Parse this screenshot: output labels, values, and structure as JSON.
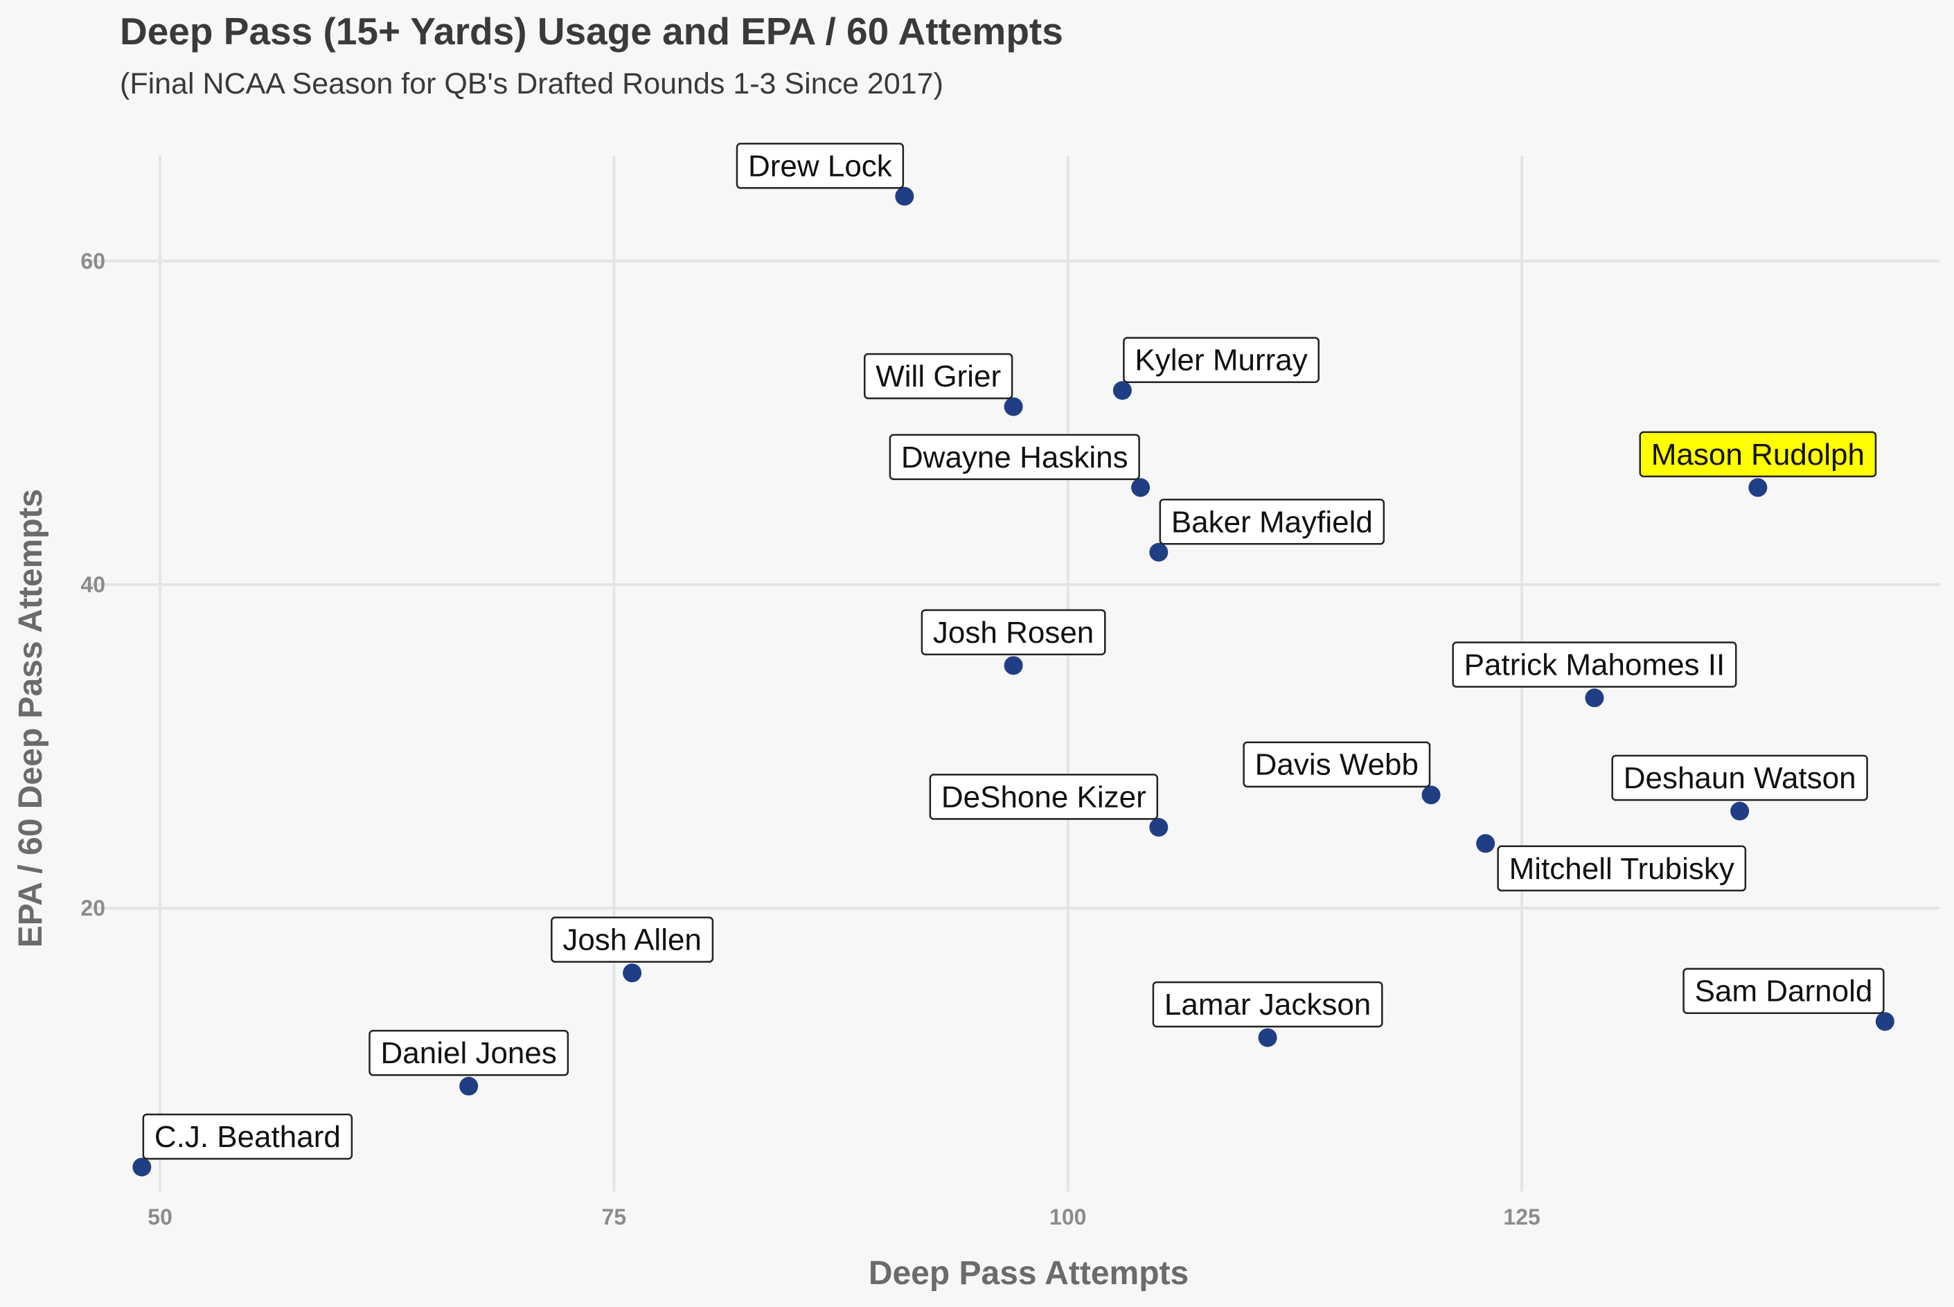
{
  "chart_data": {
    "type": "scatter",
    "title": "Deep Pass (15+ Yards) Usage and EPA / 60 Attempts",
    "subtitle": "(Final NCAA Season for QB's Drafted Rounds 1-3 Since 2017)",
    "xlabel": "Deep Pass Attempts",
    "ylabel": "EPA / 60 Deep Pass Attempts",
    "xlim": [
      45,
      148
    ],
    "ylim": [
      2.5,
      66.5
    ],
    "x_ticks": [
      50,
      75,
      100,
      125
    ],
    "y_ticks": [
      20,
      40,
      60
    ],
    "x_tick_labels": [
      "50",
      "75",
      "100",
      "125"
    ],
    "y_tick_labels": [
      "20",
      "40",
      "60"
    ],
    "grid": true,
    "point_color": "#1f3e84",
    "label_fill": "#ffffff",
    "highlight_fill": "#ffff00",
    "points": [
      {
        "name": "Drew Lock",
        "x": 91,
        "y": 64,
        "highlight": false,
        "label_pos": "upper-left"
      },
      {
        "name": "Kyler Murray",
        "x": 103,
        "y": 52,
        "highlight": false,
        "label_pos": "upper-right"
      },
      {
        "name": "Will Grier",
        "x": 97,
        "y": 51,
        "highlight": false,
        "label_pos": "upper-left"
      },
      {
        "name": "Dwayne Haskins",
        "x": 104,
        "y": 46,
        "highlight": false,
        "label_pos": "upper-left"
      },
      {
        "name": "Mason Rudolph",
        "x": 138,
        "y": 46,
        "highlight": true,
        "label_pos": "upper-center"
      },
      {
        "name": "Baker Mayfield",
        "x": 105,
        "y": 42,
        "highlight": false,
        "label_pos": "upper-right"
      },
      {
        "name": "Josh Rosen",
        "x": 97,
        "y": 35,
        "highlight": false,
        "label_pos": "upper-center"
      },
      {
        "name": "Patrick Mahomes II",
        "x": 129,
        "y": 33,
        "highlight": false,
        "label_pos": "upper-center"
      },
      {
        "name": "Davis Webb",
        "x": 120,
        "y": 27,
        "highlight": false,
        "label_pos": "upper-left"
      },
      {
        "name": "Deshaun Watson",
        "x": 137,
        "y": 26,
        "highlight": false,
        "label_pos": "upper-center"
      },
      {
        "name": "DeShone Kizer",
        "x": 105,
        "y": 25,
        "highlight": false,
        "label_pos": "upper-left"
      },
      {
        "name": "Mitchell Trubisky",
        "x": 123,
        "y": 24,
        "highlight": false,
        "label_pos": "lower-right"
      },
      {
        "name": "Josh Allen",
        "x": 76,
        "y": 16,
        "highlight": false,
        "label_pos": "upper-center"
      },
      {
        "name": "Sam Darnold",
        "x": 145,
        "y": 13,
        "highlight": false,
        "label_pos": "upper-left"
      },
      {
        "name": "Lamar Jackson",
        "x": 111,
        "y": 12,
        "highlight": false,
        "label_pos": "upper-center"
      },
      {
        "name": "Daniel Jones",
        "x": 67,
        "y": 9,
        "highlight": false,
        "label_pos": "upper-center"
      },
      {
        "name": "C.J. Beathard",
        "x": 49,
        "y": 4,
        "highlight": false,
        "label_pos": "upper-right"
      }
    ]
  }
}
